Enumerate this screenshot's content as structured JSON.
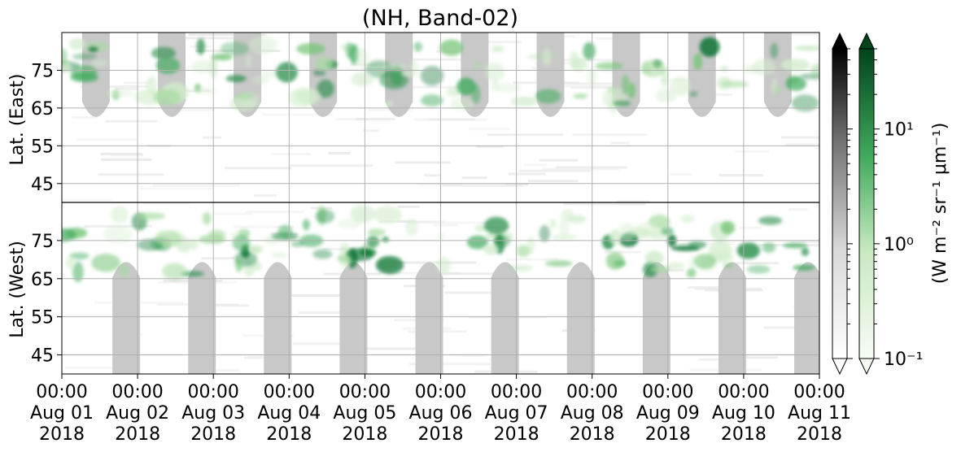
{
  "chart_data": {
    "type": "heatmap",
    "title": "(NH, Band-02)",
    "y_upper_label": "Lat. (East)",
    "y_lower_label": "Lat. (West)",
    "y_upper_ticks": [
      "45",
      "55",
      "65",
      "75"
    ],
    "y_lower_ticks": [
      "75",
      "65",
      "55",
      "45"
    ],
    "y_upper_tick_values": [
      45,
      55,
      65,
      75
    ],
    "y_lower_tick_values": [
      75,
      65,
      55,
      45
    ],
    "lat_range_each_panel": [
      40,
      85
    ],
    "x_ticks": [
      {
        "time": "00:00",
        "date": "Aug 01",
        "year": "2018"
      },
      {
        "time": "00:00",
        "date": "Aug 02",
        "year": "2018"
      },
      {
        "time": "00:00",
        "date": "Aug 03",
        "year": "2018"
      },
      {
        "time": "00:00",
        "date": "Aug 04",
        "year": "2018"
      },
      {
        "time": "00:00",
        "date": "Aug 05",
        "year": "2018"
      },
      {
        "time": "00:00",
        "date": "Aug 06",
        "year": "2018"
      },
      {
        "time": "00:00",
        "date": "Aug 07",
        "year": "2018"
      },
      {
        "time": "00:00",
        "date": "Aug 08",
        "year": "2018"
      },
      {
        "time": "00:00",
        "date": "Aug 09",
        "year": "2018"
      },
      {
        "time": "00:00",
        "date": "Aug 10",
        "year": "2018"
      },
      {
        "time": "00:00",
        "date": "Aug 11",
        "year": "2018"
      }
    ],
    "x_range": [
      "2018-08-01 00:00",
      "2018-08-11 00:00"
    ],
    "grid": true,
    "colorbar": {
      "label": "(W m⁻² sr⁻¹ μm⁻¹)",
      "ticks": [
        "10⁻¹",
        "10⁰",
        "10¹"
      ],
      "tick_values": [
        0.1,
        1,
        10
      ],
      "range": [
        0.1,
        50
      ],
      "scale": "log",
      "cmaps": [
        "Greys",
        "Greens"
      ],
      "extend": "both"
    },
    "daylight_shadow_color": "#c8c8c8",
    "aurora_color": "#2e8b4e"
  }
}
